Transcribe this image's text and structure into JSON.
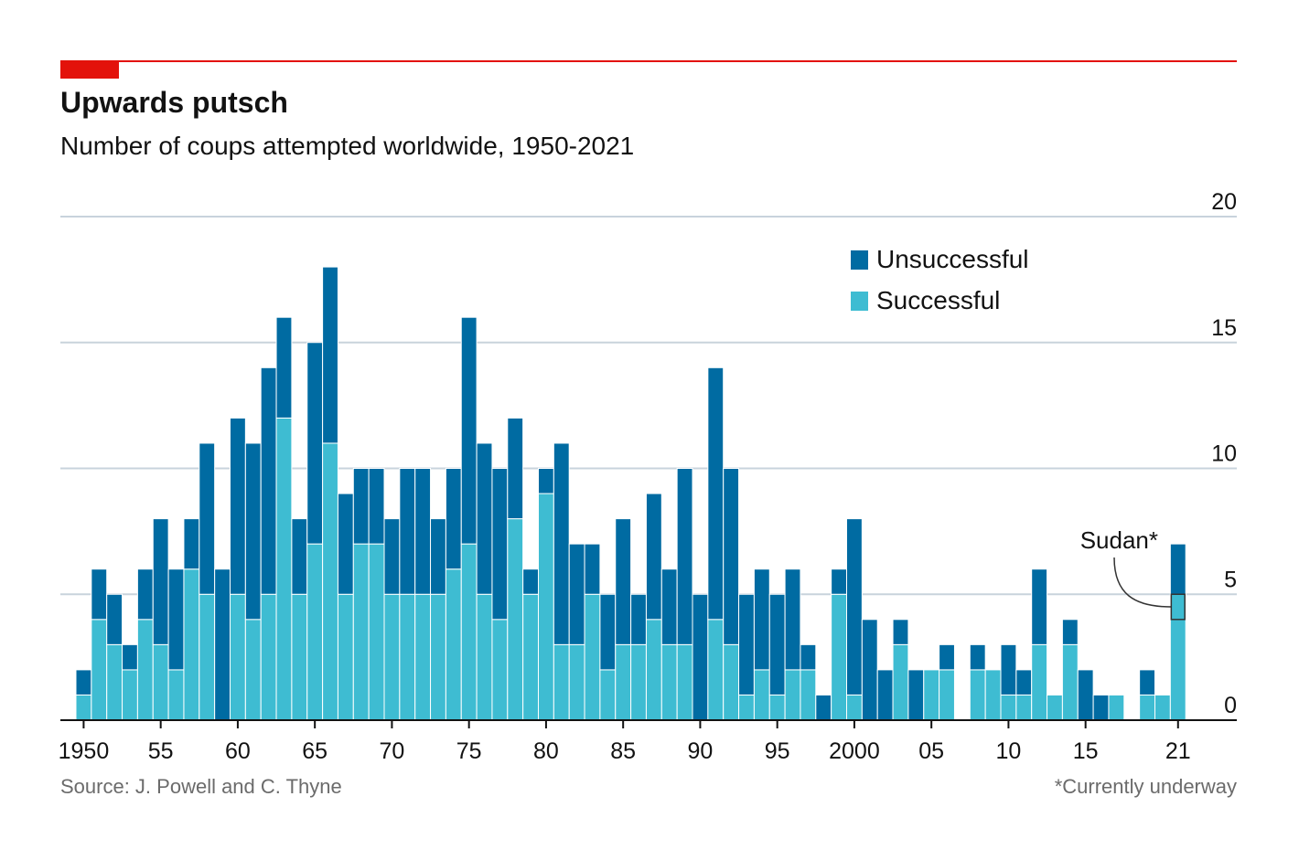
{
  "header": {
    "title": "Upwards putsch",
    "subtitle": "Number of coups attempted worldwide, 1950-2021"
  },
  "footer": {
    "source": "Source: J. Powell and C. Thyne",
    "footnote": "*Currently underway"
  },
  "colors": {
    "accent": "#e3120b",
    "unsuccessful": "#006ba2",
    "successful": "#3ebcd2",
    "gridline": "#c8d3dc",
    "axis": "#121212"
  },
  "chart_data": {
    "type": "bar",
    "stacked": true,
    "title": "Upwards putsch",
    "subtitle": "Number of coups attempted worldwide, 1950-2021",
    "xlabel": "",
    "ylabel": "",
    "ylim": [
      0,
      20
    ],
    "yticks": [
      0,
      5,
      10,
      15,
      20
    ],
    "grid": true,
    "legend_position": "top-right",
    "x": [
      1950,
      1951,
      1952,
      1953,
      1954,
      1955,
      1956,
      1957,
      1958,
      1959,
      1960,
      1961,
      1962,
      1963,
      1964,
      1965,
      1966,
      1967,
      1968,
      1969,
      1970,
      1971,
      1972,
      1973,
      1974,
      1975,
      1976,
      1977,
      1978,
      1979,
      1980,
      1981,
      1982,
      1983,
      1984,
      1985,
      1986,
      1987,
      1988,
      1989,
      1990,
      1991,
      1992,
      1993,
      1994,
      1995,
      1996,
      1997,
      1998,
      1999,
      2000,
      2001,
      2002,
      2003,
      2004,
      2005,
      2006,
      2007,
      2008,
      2009,
      2010,
      2011,
      2012,
      2013,
      2014,
      2015,
      2016,
      2017,
      2018,
      2019,
      2020,
      2021
    ],
    "xtick_labels": [
      {
        "year": 1950,
        "label": "1950"
      },
      {
        "year": 1955,
        "label": "55"
      },
      {
        "year": 1960,
        "label": "60"
      },
      {
        "year": 1965,
        "label": "65"
      },
      {
        "year": 1970,
        "label": "70"
      },
      {
        "year": 1975,
        "label": "75"
      },
      {
        "year": 1980,
        "label": "80"
      },
      {
        "year": 1985,
        "label": "85"
      },
      {
        "year": 1990,
        "label": "90"
      },
      {
        "year": 1995,
        "label": "95"
      },
      {
        "year": 2000,
        "label": "2000"
      },
      {
        "year": 2005,
        "label": "05"
      },
      {
        "year": 2010,
        "label": "10"
      },
      {
        "year": 2015,
        "label": "15"
      },
      {
        "year": 2021,
        "label": "21"
      }
    ],
    "series": [
      {
        "name": "Successful",
        "color": "#3ebcd2",
        "values": [
          1,
          4,
          3,
          2,
          4,
          3,
          2,
          6,
          5,
          0,
          5,
          4,
          5,
          12,
          5,
          7,
          11,
          5,
          7,
          7,
          5,
          5,
          5,
          5,
          6,
          7,
          5,
          4,
          8,
          5,
          9,
          3,
          3,
          5,
          2,
          3,
          3,
          4,
          3,
          3,
          0,
          4,
          3,
          1,
          2,
          1,
          2,
          2,
          0,
          5,
          1,
          0,
          0,
          3,
          0,
          2,
          2,
          0,
          2,
          2,
          1,
          1,
          3,
          1,
          3,
          0,
          0,
          1,
          0,
          1,
          1,
          5
        ]
      },
      {
        "name": "Unsuccessful",
        "color": "#006ba2",
        "values": [
          1,
          2,
          2,
          1,
          2,
          5,
          4,
          2,
          6,
          6,
          7,
          7,
          9,
          4,
          3,
          8,
          7,
          4,
          3,
          3,
          3,
          5,
          5,
          3,
          4,
          9,
          6,
          6,
          4,
          1,
          1,
          8,
          4,
          2,
          3,
          5,
          2,
          5,
          3,
          7,
          5,
          10,
          7,
          4,
          4,
          4,
          4,
          1,
          1,
          1,
          7,
          4,
          2,
          1,
          2,
          0,
          1,
          0,
          1,
          0,
          2,
          1,
          3,
          0,
          1,
          2,
          1,
          0,
          0,
          1,
          0,
          2
        ]
      }
    ],
    "legend": [
      {
        "name": "Unsuccessful",
        "color": "#006ba2"
      },
      {
        "name": "Successful",
        "color": "#3ebcd2"
      }
    ],
    "annotations": [
      {
        "label": "Sudan*",
        "year": 2021,
        "value_from": 4,
        "value_to": 5
      }
    ]
  }
}
